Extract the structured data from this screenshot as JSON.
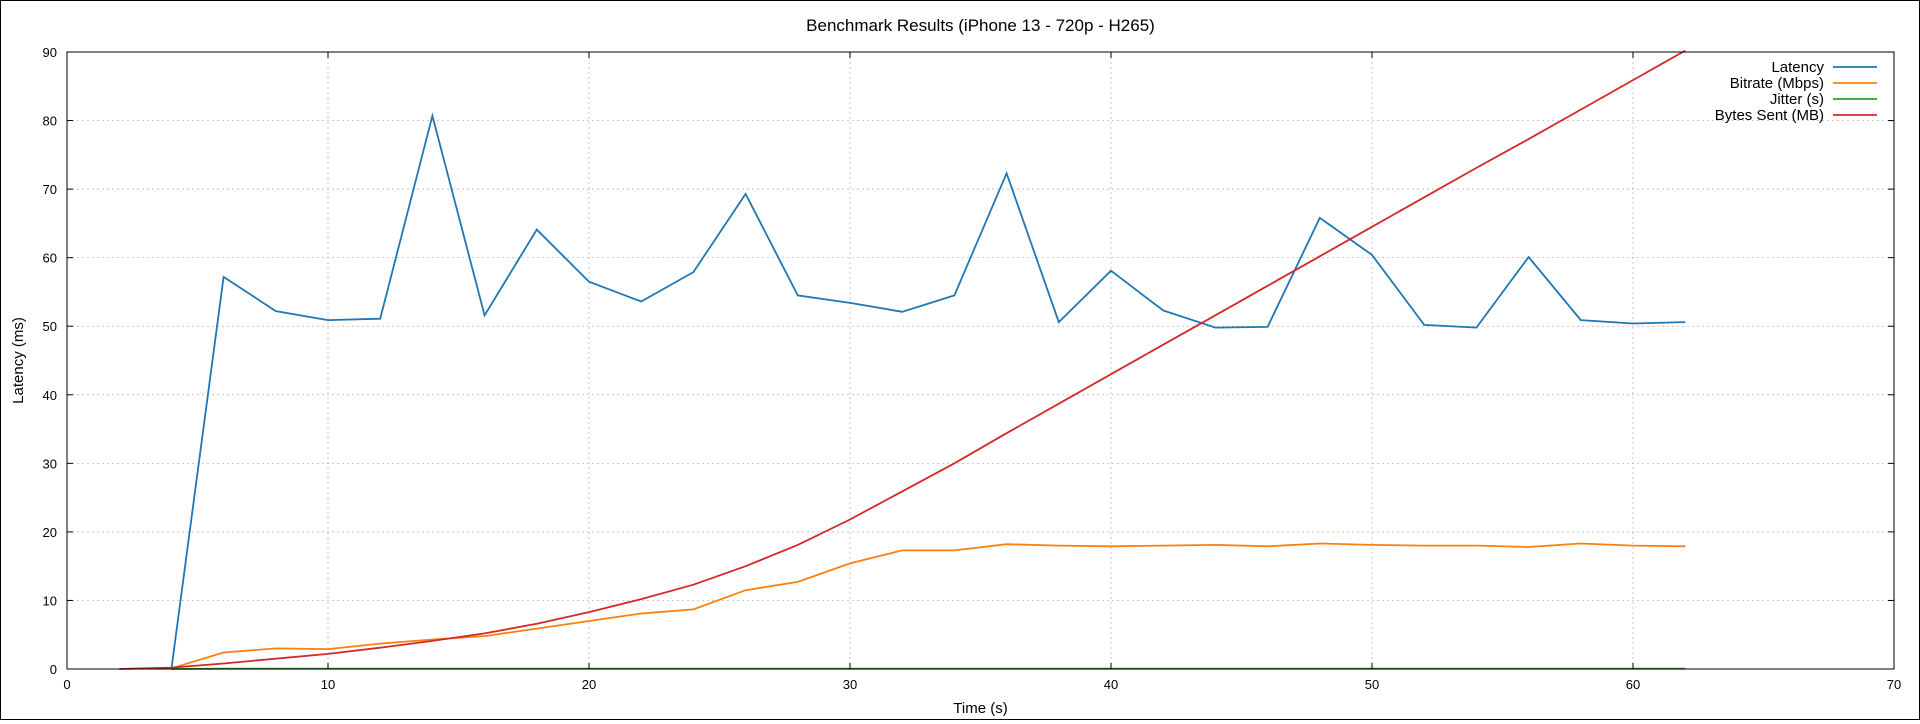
{
  "chart_data": {
    "type": "line",
    "title": "Benchmark Results (iPhone 13 - 720p - H265)",
    "xlabel": "Time (s)",
    "ylabel": "Latency (ms)",
    "xlim": [
      0,
      70
    ],
    "ylim": [
      0,
      90
    ],
    "xticks": [
      0,
      10,
      20,
      30,
      40,
      50,
      60,
      70
    ],
    "yticks": [
      0,
      10,
      20,
      30,
      40,
      50,
      60,
      70,
      80,
      90
    ],
    "grid": true,
    "legend_position": "top-right",
    "x": [
      2,
      4,
      6,
      8,
      10,
      12,
      14,
      16,
      18,
      20,
      22,
      24,
      26,
      28,
      30,
      32,
      34,
      36,
      38,
      40,
      42,
      44,
      46,
      48,
      50,
      52,
      54,
      56,
      58,
      60,
      62
    ],
    "series": [
      {
        "name": "Latency",
        "color": "#1f77b4",
        "values": [
          null,
          0,
          57.2,
          52.2,
          50.9,
          51.1,
          80.7,
          51.6,
          64.1,
          56.5,
          53.6,
          57.9,
          69.3,
          54.5,
          53.4,
          52.1,
          54.5,
          72.3,
          50.6,
          58.1,
          52.3,
          49.8,
          49.9,
          65.8,
          60.4,
          50.2,
          49.8,
          60.1,
          50.9,
          50.4,
          50.6
        ]
      },
      {
        "name": "Bitrate (Mbps)",
        "color": "#ff7f0e",
        "values": [
          null,
          0.1,
          2.4,
          3.0,
          2.9,
          3.7,
          4.3,
          4.8,
          5.9,
          7.0,
          8.1,
          8.7,
          11.5,
          12.7,
          15.4,
          17.3,
          17.3,
          18.2,
          18.0,
          17.9,
          18.0,
          18.1,
          17.9,
          18.3,
          18.1,
          18.0,
          18.0,
          17.8,
          18.3,
          18.0,
          17.9
        ]
      },
      {
        "name": "Jitter (s)",
        "color": "#2ca02c",
        "values": [
          null,
          0,
          0.05,
          0.05,
          0.05,
          0.05,
          0.05,
          0.05,
          0.05,
          0.05,
          0.05,
          0.05,
          0.05,
          0.05,
          0.05,
          0.05,
          0.05,
          0.05,
          0.05,
          0.05,
          0.05,
          0.05,
          0.05,
          0.05,
          0.05,
          0.05,
          0.05,
          0.05,
          0.05,
          0.05,
          0.05
        ]
      },
      {
        "name": "Bytes Sent (MB)",
        "color": "#d62728",
        "values": [
          0,
          0.2,
          0.8,
          1.5,
          2.2,
          3.1,
          4.1,
          5.2,
          6.6,
          8.3,
          10.2,
          12.3,
          15.0,
          18.1,
          21.8,
          25.9,
          30.0,
          34.4,
          38.7,
          43.0,
          47.3,
          51.6,
          55.9,
          60.2,
          64.5,
          68.8,
          73.1,
          77.3,
          81.6,
          85.9,
          90.2
        ]
      }
    ]
  }
}
